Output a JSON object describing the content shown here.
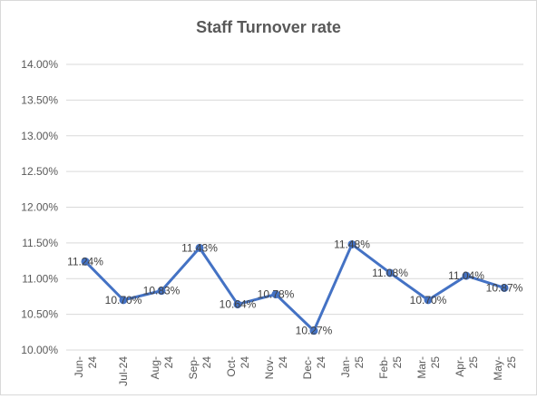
{
  "chart_data": {
    "type": "line",
    "title": "Staff Turnover rate",
    "xlabel": "",
    "ylabel": "",
    "categories": [
      [
        "Jun-",
        "24"
      ],
      [
        "Jul-24"
      ],
      [
        "Aug-",
        "24"
      ],
      [
        "Sep-",
        "24"
      ],
      [
        "Oct-",
        "24"
      ],
      [
        "Nov-",
        "24"
      ],
      [
        "Dec-",
        "24"
      ],
      [
        "Jan-",
        "25"
      ],
      [
        "Feb-",
        "25"
      ],
      [
        "Mar-",
        "25"
      ],
      [
        "Apr-",
        "25"
      ],
      [
        "May-",
        "25"
      ]
    ],
    "values": [
      11.24,
      10.7,
      10.83,
      11.43,
      10.64,
      10.78,
      10.27,
      11.48,
      11.08,
      10.7,
      11.04,
      10.87
    ],
    "data_labels": [
      "11.24%",
      "10.70%",
      "10.83%",
      "11.43%",
      "10.64%",
      "10.78%",
      "10.27%",
      "11.48%",
      "11.08%",
      "10.70%",
      "11.04%",
      "10.87%"
    ],
    "ylim": [
      10.0,
      14.0
    ],
    "yticks": [
      10.0,
      10.5,
      11.0,
      11.5,
      12.0,
      12.5,
      13.0,
      13.5,
      14.0
    ],
    "ytick_labels": [
      "10.00%",
      "10.50%",
      "11.00%",
      "11.50%",
      "12.00%",
      "12.50%",
      "13.00%",
      "13.50%",
      "14.00%"
    ],
    "grid": true,
    "legend": "none",
    "line_color": "#4472c4",
    "grid_color": "#d9d9d9"
  }
}
